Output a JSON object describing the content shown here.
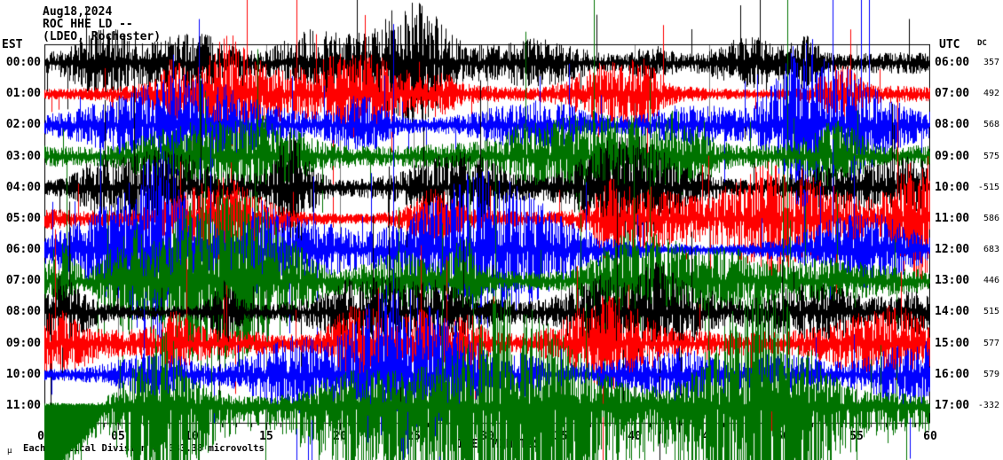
{
  "title": {
    "date": "Aug18,2024",
    "station": "ROC HHE LD --",
    "location": "(LDEO, Rochester)"
  },
  "axes": {
    "left_header": "EST",
    "right_header": "UTC",
    "dc_header": "DC",
    "x_label": "TIME (MINUTES)",
    "x_tick_labels": [
      "00",
      "05",
      "10",
      "15",
      "20",
      "25",
      "30",
      "35",
      "40",
      "45",
      "50",
      "55",
      "60"
    ]
  },
  "footer": {
    "mu": "μ",
    "text": "Each Vertical Division =  333.38 microvolts"
  },
  "chart_data": {
    "type": "line",
    "subtype": "helicorder-seismogram",
    "title": "ROC HHE LD -- (LDEO, Rochester) Aug18,2024",
    "xlabel": "TIME (MINUTES)",
    "x_range_minutes": [
      0,
      60
    ],
    "x_tick_interval_minutes": 5,
    "minor_tick_interval_minutes": 1,
    "grid": true,
    "gridline_color": "#808080",
    "frame_color": "#000000",
    "trace_color_cycle": [
      "#000000",
      "#ff0000",
      "#0000ff",
      "#007300"
    ],
    "rows": [
      {
        "est": "00:00",
        "utc": "06:00",
        "dc": "357",
        "color": "#000000"
      },
      {
        "est": "01:00",
        "utc": "07:00",
        "dc": "492",
        "color": "#ff0000"
      },
      {
        "est": "02:00",
        "utc": "08:00",
        "dc": "568",
        "color": "#0000ff"
      },
      {
        "est": "03:00",
        "utc": "09:00",
        "dc": "575",
        "color": "#007300"
      },
      {
        "est": "04:00",
        "utc": "10:00",
        "dc": "-515",
        "color": "#000000"
      },
      {
        "est": "05:00",
        "utc": "11:00",
        "dc": "586",
        "color": "#ff0000"
      },
      {
        "est": "06:00",
        "utc": "12:00",
        "dc": "683",
        "color": "#0000ff"
      },
      {
        "est": "07:00",
        "utc": "13:00",
        "dc": "446",
        "color": "#007300"
      },
      {
        "est": "08:00",
        "utc": "14:00",
        "dc": "515",
        "color": "#000000"
      },
      {
        "est": "09:00",
        "utc": "15:00",
        "dc": "577",
        "color": "#ff0000"
      },
      {
        "est": "10:00",
        "utc": "16:00",
        "dc": "579",
        "color": "#0000ff"
      },
      {
        "est": "11:00",
        "utc": "17:00",
        "dc": "-332",
        "color": "#007300"
      }
    ],
    "description": "Twelve one-hour rows of continuous high-gain seismic noise (station ROC, channel HHE, network LD). Dense spiky noise with intermittent high-amplitude bursts; traces overlap adjacent rows; last green row saturates below the bottom axis."
  }
}
